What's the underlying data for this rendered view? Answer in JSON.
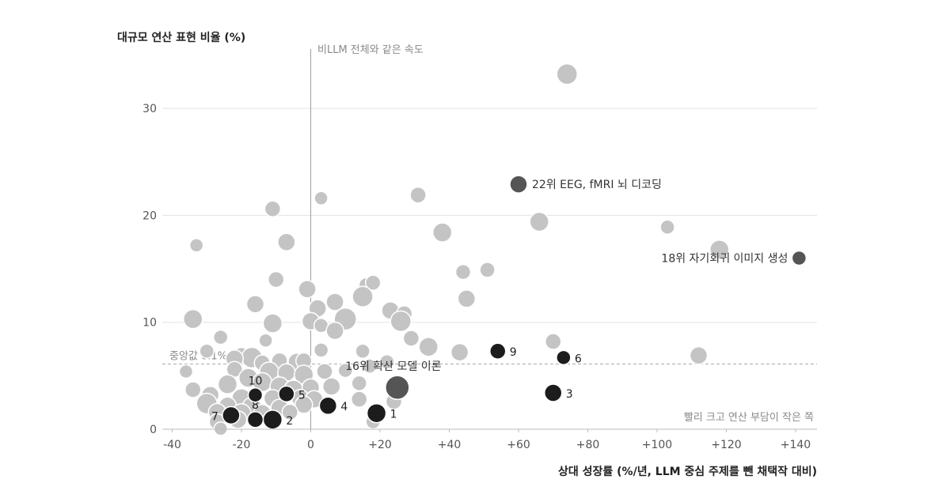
{
  "chart_data": {
    "type": "scatter",
    "title": "",
    "ylabel": "대규모 연산 표현 비율 (%)",
    "xlabel": "상대 성장률 (%/년, LLM 중심 주제를 뺀 채택작 대비)",
    "xlim": [
      -42,
      148
    ],
    "ylim": [
      0,
      36
    ],
    "xticks": [
      -40,
      -20,
      0,
      20,
      40,
      60,
      80,
      100,
      120,
      140
    ],
    "xtick_labels": [
      "-40",
      "-20",
      "0",
      "+20",
      "+40",
      "+60",
      "+80",
      "+100",
      "+120",
      "+140"
    ],
    "yticks": [
      0,
      10,
      20,
      30
    ],
    "ytick_labels": [
      "0",
      "10",
      "20",
      "30"
    ],
    "grid": "horizontal",
    "colors": {
      "background_point": "#c4c4c4",
      "ranked_point": "#1c1c1c",
      "highlight_point": "#555555",
      "median_line": "#aaaaaa",
      "zero_line": "#9e9e9e",
      "grid": "#e3e3e3"
    },
    "annotations": {
      "zero_line_label": "비LLM 전체와 같은 속도",
      "median_label": "중앙값 6.1%",
      "median_value": 6.1,
      "quadrant_label": "빨리 크고 연산 부담이 작은 쪽"
    },
    "ranked_points": [
      {
        "label": "1",
        "x": 19,
        "y": 1.5,
        "size": 24
      },
      {
        "label": "2",
        "x": -11,
        "y": 0.9,
        "size": 24
      },
      {
        "label": "3",
        "x": 70,
        "y": 3.4,
        "size": 22
      },
      {
        "label": "4",
        "x": 5,
        "y": 2.2,
        "size": 22
      },
      {
        "label": "5",
        "x": -7,
        "y": 3.3,
        "size": 20
      },
      {
        "label": "6",
        "x": 73,
        "y": 6.7,
        "size": 18
      },
      {
        "label": "7",
        "x": -23,
        "y": 1.3,
        "size": 22
      },
      {
        "label": "8",
        "x": -16,
        "y": 0.9,
        "size": 20
      },
      {
        "label": "9",
        "x": 54,
        "y": 7.3,
        "size": 20
      },
      {
        "label": "10",
        "x": -16,
        "y": 3.2,
        "size": 18
      }
    ],
    "highlight_points": [
      {
        "label": "22위 EEG, fMRI 뇌 디코딩",
        "x": 60,
        "y": 22.9,
        "size": 22
      },
      {
        "label": "18위 자기회귀 이미지 생성",
        "x": 141,
        "y": 16.0,
        "size": 18
      },
      {
        "label": "16위 확산 모델 이론",
        "x": 25,
        "y": 3.9,
        "size": 30
      }
    ],
    "background_points": [
      {
        "x": 74,
        "y": 33.2,
        "s": 26
      },
      {
        "x": 31,
        "y": 21.9,
        "s": 20
      },
      {
        "x": 3,
        "y": 21.6,
        "s": 17
      },
      {
        "x": -11,
        "y": 20.6,
        "s": 20
      },
      {
        "x": 66,
        "y": 19.4,
        "s": 24
      },
      {
        "x": 103,
        "y": 18.9,
        "s": 18
      },
      {
        "x": 38,
        "y": 18.4,
        "s": 24
      },
      {
        "x": 118,
        "y": 16.8,
        "s": 24
      },
      {
        "x": -33,
        "y": 17.2,
        "s": 17
      },
      {
        "x": -7,
        "y": 17.5,
        "s": 22
      },
      {
        "x": 44,
        "y": 14.7,
        "s": 19
      },
      {
        "x": 51,
        "y": 14.9,
        "s": 19
      },
      {
        "x": -10,
        "y": 14.0,
        "s": 20
      },
      {
        "x": 16,
        "y": 13.5,
        "s": 18
      },
      {
        "x": 18,
        "y": 13.7,
        "s": 19
      },
      {
        "x": -1,
        "y": 13.1,
        "s": 22
      },
      {
        "x": 15,
        "y": 12.4,
        "s": 26
      },
      {
        "x": 45,
        "y": 12.2,
        "s": 22
      },
      {
        "x": -16,
        "y": 11.7,
        "s": 22
      },
      {
        "x": 7,
        "y": 11.9,
        "s": 22
      },
      {
        "x": 2,
        "y": 11.3,
        "s": 22
      },
      {
        "x": 23,
        "y": 11.1,
        "s": 22
      },
      {
        "x": 27,
        "y": 10.8,
        "s": 20
      },
      {
        "x": 10,
        "y": 10.3,
        "s": 28
      },
      {
        "x": -34,
        "y": 10.3,
        "s": 24
      },
      {
        "x": -11,
        "y": 9.9,
        "s": 24
      },
      {
        "x": 0,
        "y": 10.1,
        "s": 22
      },
      {
        "x": 26,
        "y": 10.1,
        "s": 26
      },
      {
        "x": 3,
        "y": 9.7,
        "s": 18
      },
      {
        "x": 7,
        "y": 9.2,
        "s": 22
      },
      {
        "x": -26,
        "y": 8.6,
        "s": 18
      },
      {
        "x": 29,
        "y": 8.5,
        "s": 20
      },
      {
        "x": -13,
        "y": 8.3,
        "s": 17
      },
      {
        "x": 70,
        "y": 8.2,
        "s": 20
      },
      {
        "x": 34,
        "y": 7.7,
        "s": 24
      },
      {
        "x": 43,
        "y": 7.2,
        "s": 22
      },
      {
        "x": 112,
        "y": 6.9,
        "s": 22
      },
      {
        "x": 15,
        "y": 7.3,
        "s": 18
      },
      {
        "x": 3,
        "y": 7.4,
        "s": 18
      },
      {
        "x": -30,
        "y": 7.3,
        "s": 18
      },
      {
        "x": -20,
        "y": 6.9,
        "s": 20
      },
      {
        "x": -17,
        "y": 6.7,
        "s": 26
      },
      {
        "x": -22,
        "y": 6.6,
        "s": 22
      },
      {
        "x": -14,
        "y": 6.2,
        "s": 20
      },
      {
        "x": -9,
        "y": 6.4,
        "s": 20
      },
      {
        "x": -4,
        "y": 6.3,
        "s": 22
      },
      {
        "x": -2,
        "y": 6.4,
        "s": 20
      },
      {
        "x": 22,
        "y": 6.3,
        "s": 18
      },
      {
        "x": 17,
        "y": 5.9,
        "s": 18
      },
      {
        "x": -36,
        "y": 5.4,
        "s": 17
      },
      {
        "x": -22,
        "y": 5.6,
        "s": 20
      },
      {
        "x": -12,
        "y": 5.4,
        "s": 24
      },
      {
        "x": -7,
        "y": 5.3,
        "s": 22
      },
      {
        "x": -2,
        "y": 5.1,
        "s": 24
      },
      {
        "x": 4,
        "y": 5.4,
        "s": 20
      },
      {
        "x": 10,
        "y": 5.5,
        "s": 18
      },
      {
        "x": -18,
        "y": 4.8,
        "s": 24
      },
      {
        "x": -24,
        "y": 4.2,
        "s": 24
      },
      {
        "x": -14,
        "y": 4.4,
        "s": 24
      },
      {
        "x": -9,
        "y": 4.0,
        "s": 24
      },
      {
        "x": -5,
        "y": 3.7,
        "s": 24
      },
      {
        "x": 0,
        "y": 3.9,
        "s": 22
      },
      {
        "x": 6,
        "y": 4.0,
        "s": 22
      },
      {
        "x": 14,
        "y": 4.3,
        "s": 19
      },
      {
        "x": 26,
        "y": 3.8,
        "s": 22
      },
      {
        "x": -34,
        "y": 3.7,
        "s": 20
      },
      {
        "x": -29,
        "y": 3.2,
        "s": 22
      },
      {
        "x": -20,
        "y": 2.9,
        "s": 24
      },
      {
        "x": -11,
        "y": 2.9,
        "s": 22
      },
      {
        "x": -3,
        "y": 2.9,
        "s": 22
      },
      {
        "x": 1,
        "y": 2.8,
        "s": 22
      },
      {
        "x": 14,
        "y": 2.8,
        "s": 20
      },
      {
        "x": 24,
        "y": 2.6,
        "s": 20
      },
      {
        "x": -30,
        "y": 2.4,
        "s": 26
      },
      {
        "x": -24,
        "y": 2.2,
        "s": 22
      },
      {
        "x": -17,
        "y": 2.1,
        "s": 24
      },
      {
        "x": -9,
        "y": 2.0,
        "s": 22
      },
      {
        "x": -2,
        "y": 2.3,
        "s": 22
      },
      {
        "x": -27,
        "y": 1.6,
        "s": 22
      },
      {
        "x": -20,
        "y": 1.5,
        "s": 24
      },
      {
        "x": -14,
        "y": 1.5,
        "s": 22
      },
      {
        "x": -6,
        "y": 1.6,
        "s": 20
      },
      {
        "x": -27,
        "y": 0.7,
        "s": 20
      },
      {
        "x": -21,
        "y": 0.9,
        "s": 22
      },
      {
        "x": 18,
        "y": 0.7,
        "s": 18
      },
      {
        "x": -26,
        "y": 0.05,
        "s": 17
      }
    ]
  }
}
